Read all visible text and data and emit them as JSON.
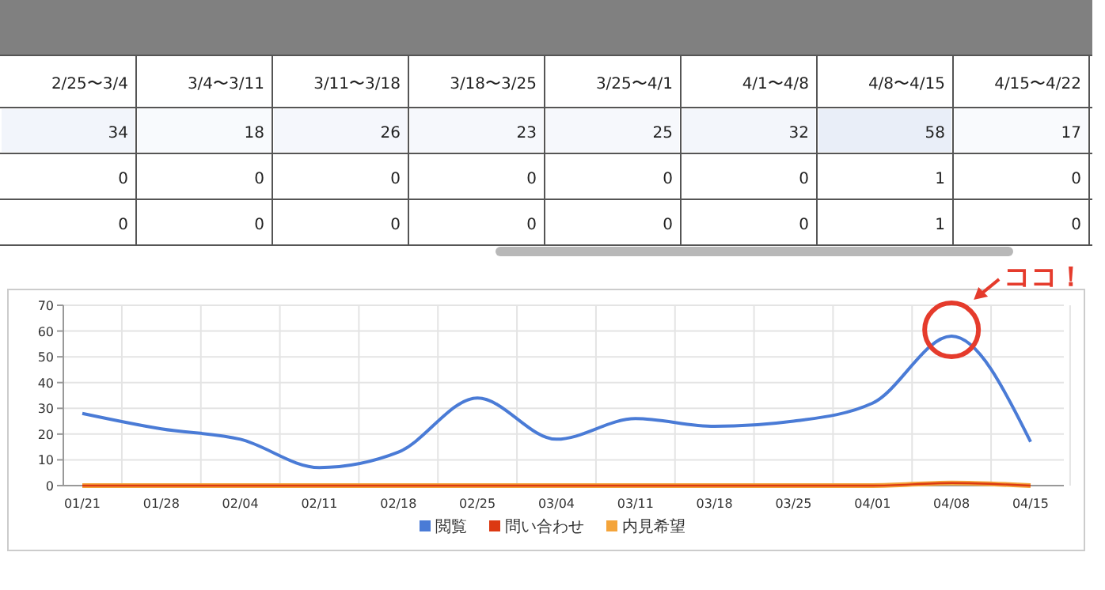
{
  "chart_data": [
    {
      "type": "heatmap",
      "categories": [
        "2/25〜3/4",
        "3/4〜3/11",
        "3/11〜3/18",
        "3/18〜3/25",
        "3/25〜4/1",
        "4/1〜4/8",
        "4/8〜4/15",
        "4/15〜4/22"
      ],
      "y_categories": [
        null,
        null,
        null
      ],
      "cells": [
        [
          34,
          18,
          26,
          23,
          25,
          32,
          58,
          17
        ],
        [
          0,
          0,
          0,
          0,
          0,
          0,
          1,
          0
        ],
        [
          0,
          0,
          0,
          0,
          0,
          0,
          1,
          0
        ]
      ],
      "cell_labels": [
        [
          "34",
          "18",
          "26",
          "23",
          "25",
          "32",
          "58",
          "17"
        ],
        [
          "0",
          "0",
          "0",
          "0",
          "0",
          "0",
          "1",
          "0"
        ],
        [
          "0",
          "0",
          "0",
          "0",
          "0",
          "0",
          "1",
          "0"
        ]
      ]
    },
    {
      "type": "line",
      "categories": [
        "01/21",
        "01/28",
        "02/04",
        "02/11",
        "02/18",
        "02/25",
        "03/04",
        "03/11",
        "03/18",
        "03/25",
        "04/01",
        "04/08",
        "04/15"
      ],
      "series": [
        {
          "name": "閲覧",
          "color": "#4a7bd6",
          "values": [
            28,
            22,
            18,
            7,
            13,
            34,
            18,
            26,
            23,
            25,
            32,
            58,
            17
          ]
        },
        {
          "name": "問い合わせ",
          "color": "#dc3912",
          "values": [
            0,
            0,
            0,
            0,
            0,
            0,
            0,
            0,
            0,
            0,
            0,
            1,
            0
          ]
        },
        {
          "name": "内見希望",
          "color": "#f4a43a",
          "values": [
            0,
            0,
            0,
            0,
            0,
            0,
            0,
            0,
            0,
            0,
            0,
            1,
            0
          ]
        }
      ],
      "ylim": [
        0,
        70
      ],
      "yticks": [
        0,
        10,
        20,
        30,
        40,
        50,
        60,
        70
      ],
      "grid": true,
      "legend": "bottom",
      "marker": "none",
      "line_style": "solid",
      "annotations": [
        {
          "text": "ココ！",
          "x": "04/08",
          "y": 58
        }
      ]
    }
  ]
}
